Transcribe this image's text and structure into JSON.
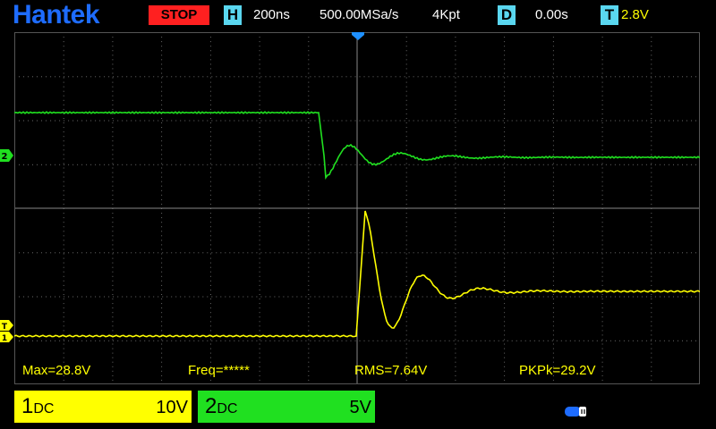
{
  "header": {
    "brand": "Hantek",
    "run_state": "STOP",
    "h_tag": "H",
    "timebase": "200ns",
    "sample_rate": "500.00MSa/s",
    "memory_depth": "4Kpt",
    "d_tag": "D",
    "delay": "0.00s",
    "t_tag": "T",
    "trigger_level": "2.8V"
  },
  "measurements": {
    "max": "Max=28.8V",
    "freq": "Freq=*****",
    "rms": "RMS=7.64V",
    "pkpk": "PKPk=29.2V"
  },
  "channels": [
    {
      "num": "1",
      "coupling": "DC",
      "scale": "10V",
      "color": "#ffff00"
    },
    {
      "num": "2",
      "coupling": "DC",
      "scale": "5V",
      "color": "#20e020"
    }
  ],
  "markers": {
    "ch1": "1",
    "ch2": "2",
    "trigger": "T"
  },
  "colors": {
    "brand": "#1e6cff",
    "stop": "#ff2020",
    "tag": "#5ad7f0",
    "trigger_pointer": "#1e90ff"
  },
  "icons": {
    "status": "usb-status-icon"
  }
}
